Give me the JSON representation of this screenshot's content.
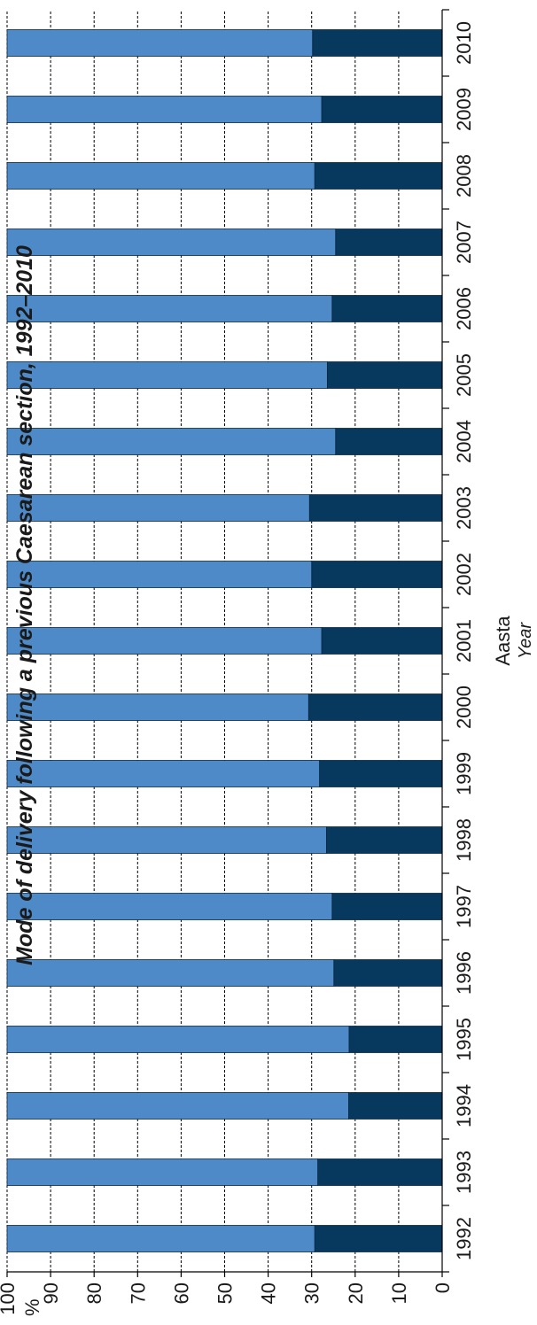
{
  "chart_data": {
    "type": "bar",
    "stacked": true,
    "orientation": "horizontal",
    "title": "Mode of delivery following a previous Caesarean section, 1992–2010",
    "xlabel": "Aasta",
    "xlabel_en": "Year",
    "ylabel": "%",
    "ylim": [
      0,
      100
    ],
    "yticks": [
      0,
      10,
      20,
      30,
      40,
      50,
      60,
      70,
      80,
      90,
      100
    ],
    "grid": true,
    "categories": [
      "1992",
      "1993",
      "1994",
      "1995",
      "1996",
      "1997",
      "1998",
      "1999",
      "2000",
      "2001",
      "2002",
      "2003",
      "2004",
      "2005",
      "2006",
      "2007",
      "2008",
      "2009",
      "2010"
    ],
    "series": [
      {
        "color": "#07385e",
        "values": [
          29.3,
          28.6,
          21.5,
          21.4,
          24.9,
          25.3,
          26.6,
          28.2,
          30.7,
          27.7,
          30.0,
          30.5,
          24.5,
          26.4,
          25.3,
          24.5,
          29.3,
          27.7,
          29.8
        ]
      },
      {
        "color": "#4e8ac8",
        "values": [
          70.7,
          71.4,
          78.5,
          78.6,
          75.1,
          74.7,
          73.4,
          71.8,
          69.3,
          72.3,
          70.0,
          69.5,
          75.5,
          73.6,
          74.7,
          75.5,
          70.7,
          72.3,
          70.2
        ]
      }
    ]
  }
}
